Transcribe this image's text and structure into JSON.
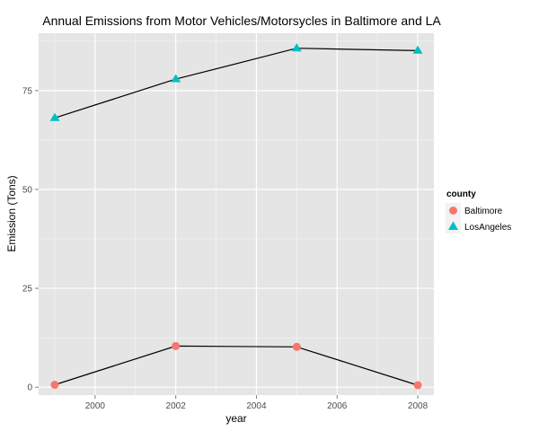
{
  "chart_data": {
    "type": "line",
    "title": "Annual Emissions from Motor Vehicles/Motorsycles in Baltimore and LA",
    "xlabel": "year",
    "ylabel": "Emission (Tons)",
    "xlim": [
      1998.6,
      2008.4
    ],
    "ylim": [
      -2,
      89.5
    ],
    "xticks": [
      2000,
      2002,
      2004,
      2006,
      2008
    ],
    "yticks": [
      0,
      25,
      50,
      75
    ],
    "grid": true,
    "legend": {
      "title": "county",
      "position": "right"
    },
    "series": [
      {
        "name": "Baltimore",
        "marker": "circle",
        "color": "#F8766D",
        "x": [
          1999,
          2002,
          2005,
          2008
        ],
        "y": [
          0.6,
          10.4,
          10.2,
          0.5
        ]
      },
      {
        "name": "LosAngeles",
        "marker": "triangle",
        "color": "#00BFC4",
        "x": [
          1999,
          2002,
          2005,
          2008
        ],
        "y": [
          68.1,
          77.9,
          85.7,
          85.1
        ]
      }
    ]
  },
  "colors": {
    "panel_background": "#E5E5E5",
    "grid_major": "#FFFFFF",
    "grid_minor": "#F2F2F2",
    "line": "#000000"
  }
}
